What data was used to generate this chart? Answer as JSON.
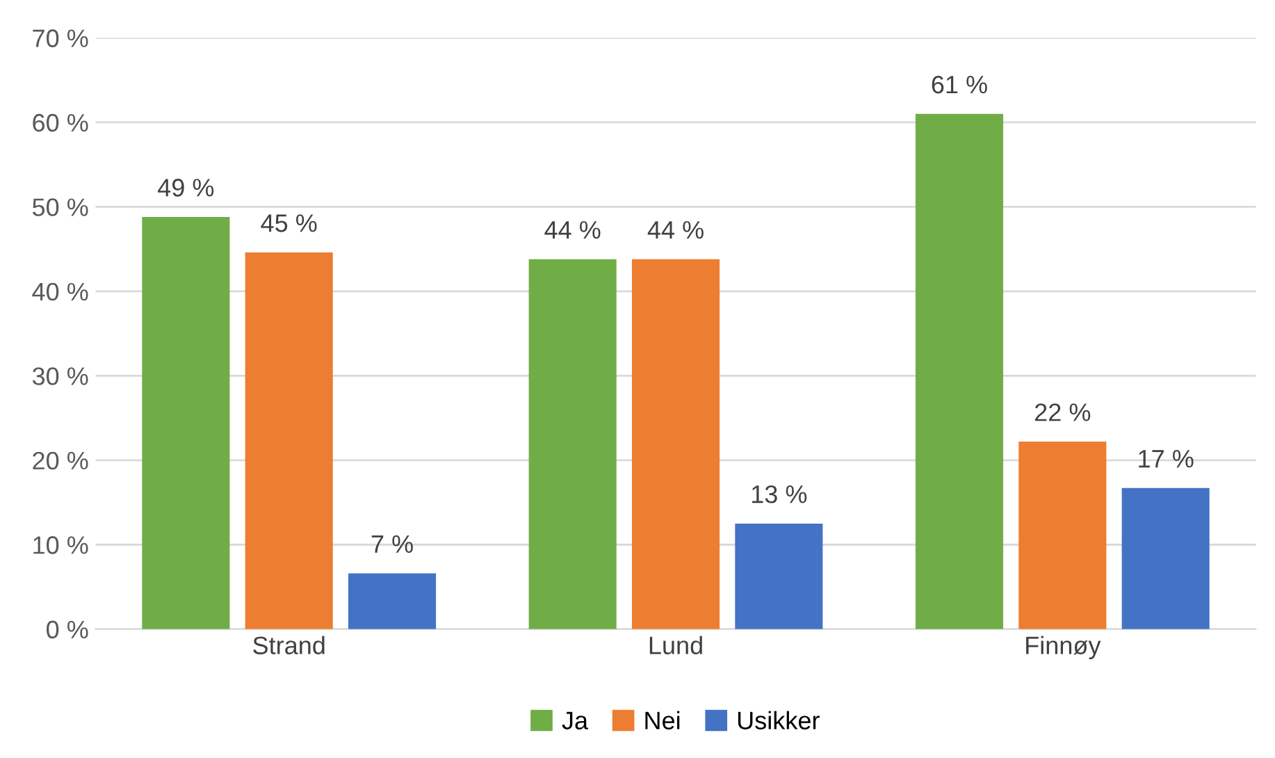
{
  "chart_data": {
    "type": "bar",
    "categories": [
      "Strand",
      "Lund",
      "Finnøy"
    ],
    "series": [
      {
        "name": "Ja",
        "color": "#70ad47",
        "values": [
          48.8,
          43.8,
          61.0
        ],
        "value_labels": [
          "49 %",
          "44 %",
          "61 %"
        ]
      },
      {
        "name": "Nei",
        "color": "#ed7d31",
        "values": [
          44.6,
          43.8,
          22.2
        ],
        "value_labels": [
          "45 %",
          "44 %",
          "22 %"
        ]
      },
      {
        "name": "Usikker",
        "color": "#4472c4",
        "values": [
          6.6,
          12.5,
          16.7
        ],
        "value_labels": [
          "7 %",
          "13 %",
          "17 %"
        ]
      }
    ],
    "ylim": [
      0,
      70
    ],
    "yticks": [
      {
        "value": 0,
        "label": "0 %"
      },
      {
        "value": 10,
        "label": "10 %"
      },
      {
        "value": 20,
        "label": "20 %"
      },
      {
        "value": 30,
        "label": "30 %"
      },
      {
        "value": 40,
        "label": "40 %"
      },
      {
        "value": 50,
        "label": "50 %"
      },
      {
        "value": 60,
        "label": "60 %"
      },
      {
        "value": 70,
        "label": "70 %"
      }
    ],
    "grid": "y",
    "legend": "bottom"
  }
}
